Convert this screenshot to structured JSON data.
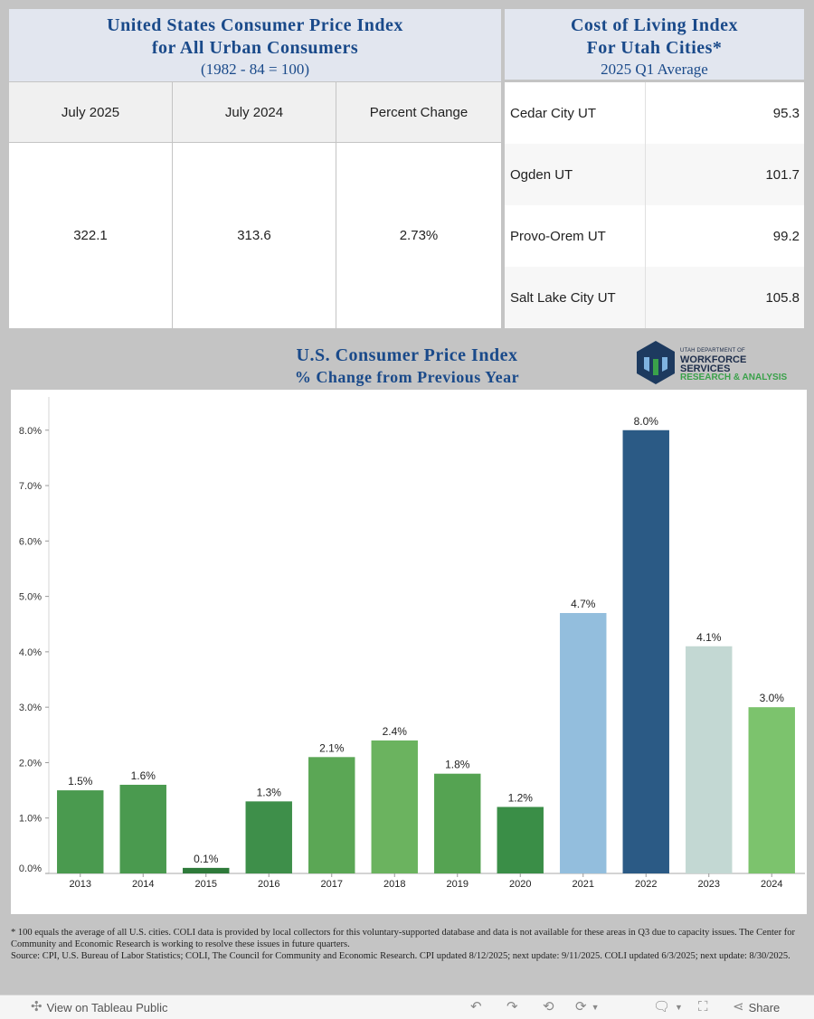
{
  "cpi_panel": {
    "title_line1": "United States Consumer Price Index",
    "title_line2": "for All Urban Consumers",
    "title_line3": "(1982 - 84 = 100)",
    "headers": [
      "July 2025",
      "July 2024",
      "Percent Change"
    ],
    "values": [
      "322.1",
      "313.6",
      "2.73%"
    ]
  },
  "coli_panel": {
    "title_line1": "Cost of Living Index",
    "title_line2": "For Utah Cities*",
    "title_line3": "2025 Q1 Average",
    "rows": [
      {
        "city": "Cedar City UT",
        "value": "95.3"
      },
      {
        "city": "Ogden UT",
        "value": "101.7"
      },
      {
        "city": "Provo-Orem UT",
        "value": "99.2"
      },
      {
        "city": "Salt Lake City UT",
        "value": "105.8"
      }
    ]
  },
  "logo": {
    "line1": "UTAH DEPARTMENT OF",
    "line2": "WORKFORCE",
    "line3": "SERVICES",
    "line4": "RESEARCH & ANALYSIS"
  },
  "chart_data": {
    "type": "bar",
    "title": "U.S. Consumer Price Index",
    "subtitle": "% Change from Previous Year",
    "categories": [
      "2013",
      "2014",
      "2015",
      "2016",
      "2017",
      "2018",
      "2019",
      "2020",
      "2021",
      "2022",
      "2023",
      "2024"
    ],
    "values": [
      1.5,
      1.6,
      0.1,
      1.3,
      2.1,
      2.4,
      1.8,
      1.2,
      4.7,
      8.0,
      4.1,
      3.0
    ],
    "labels": [
      "1.5%",
      "1.6%",
      "0.1%",
      "1.3%",
      "2.1%",
      "2.4%",
      "1.8%",
      "1.2%",
      "4.7%",
      "8.0%",
      "4.1%",
      "3.0%"
    ],
    "colors": [
      "#4a9a4f",
      "#4a9a4f",
      "#2e7a3a",
      "#3e8f4a",
      "#5ba755",
      "#6bb35f",
      "#55a352",
      "#3a8e47",
      "#93bedd",
      "#2b5a85",
      "#c3d8d3",
      "#7cc36d"
    ],
    "yticks": [
      0,
      1,
      2,
      3,
      4,
      5,
      6,
      7,
      8
    ],
    "ytick_labels": [
      "0.0%",
      "1.0%",
      "2.0%",
      "3.0%",
      "4.0%",
      "5.0%",
      "6.0%",
      "7.0%",
      "8.0%"
    ],
    "ylim": [
      0,
      8.6
    ],
    "grid": false,
    "legend": "none"
  },
  "footnote": {
    "line1": "* 100 equals the average of all U.S. cities. COLI data is provided by local collectors for this voluntary-supported database and data is not available for these areas in Q3 due to capacity issues. The Center for Community and Economic Research is working to resolve these issues in future quarters.",
    "line2": "Source: CPI, U.S. Bureau of Labor Statistics; COLI, The Council for Community and Economic Research. CPI updated 8/12/2025; next update: 9/11/2025. COLI updated 6/3/2025; next update: 8/30/2025."
  },
  "toolbar": {
    "view_label": "View on Tableau Public",
    "share_label": "Share"
  }
}
